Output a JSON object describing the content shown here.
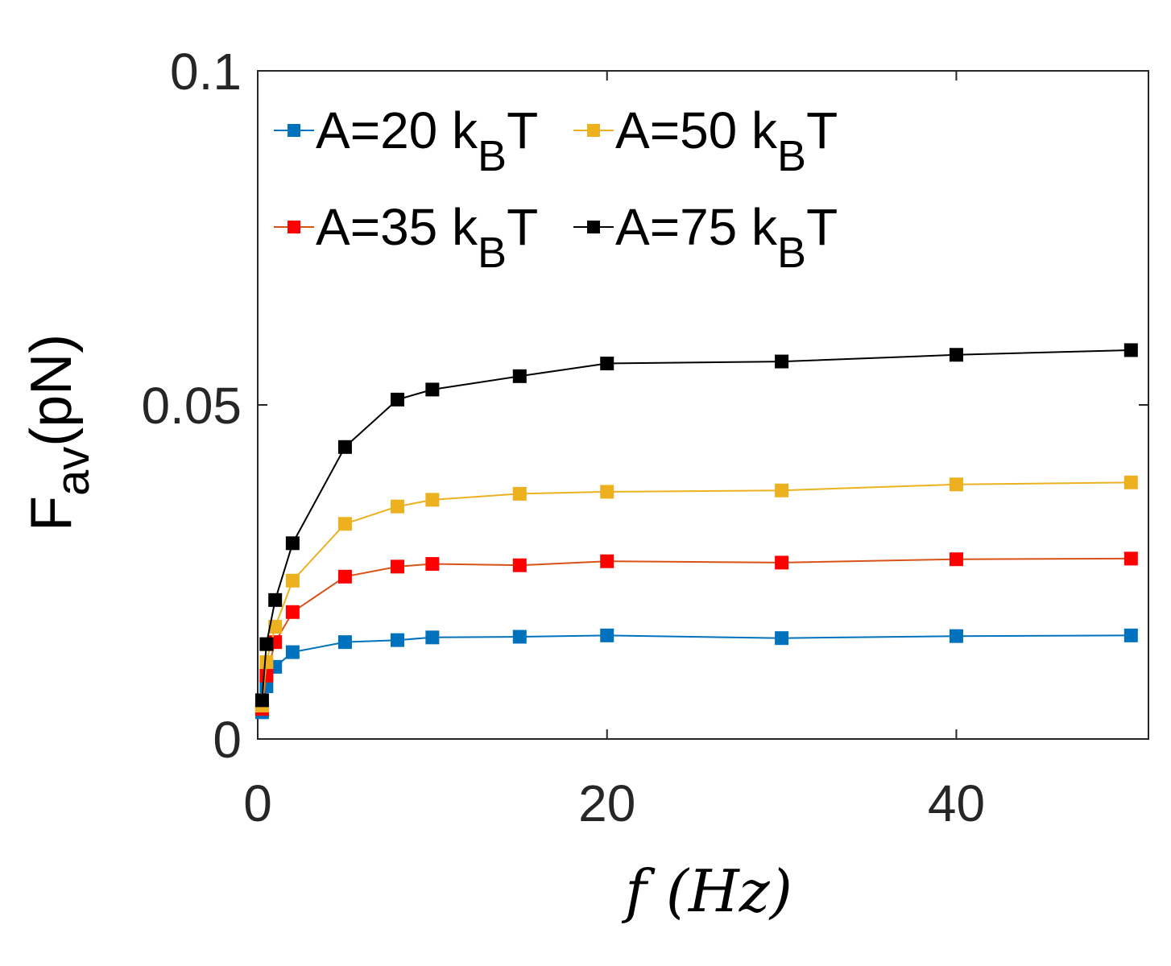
{
  "chart_data": {
    "type": "line",
    "title": "",
    "xlabel": {
      "var": "f",
      "unit": "(Hz)"
    },
    "ylabel": {
      "main": "F",
      "sub": "av",
      "unit": "(pN)"
    },
    "xlim": [
      0,
      51
    ],
    "ylim": [
      0,
      0.1
    ],
    "xticks": [
      0,
      20,
      40
    ],
    "yticks": [
      0,
      0.05,
      0.1
    ],
    "ytick_labels": [
      "0",
      "0.05",
      "0.1"
    ],
    "xtick_labels": [
      "0",
      "20",
      "40"
    ],
    "x": [
      0.25,
      0.5,
      1,
      2,
      5,
      8,
      10,
      15,
      20,
      30,
      40,
      50
    ],
    "series": [
      {
        "name": "A=20 kBT",
        "label_main": "A=20 k",
        "label_sub": "B",
        "label_end": "T",
        "color": "#0072BD",
        "marker_color": "#0072BD",
        "values": [
          0.004,
          0.0079,
          0.0108,
          0.013,
          0.0145,
          0.0148,
          0.0152,
          0.0153,
          0.0155,
          0.0151,
          0.0154,
          0.0155
        ]
      },
      {
        "name": "A=35 kBT",
        "label_main": "A=35 k",
        "label_sub": "B",
        "label_end": "T",
        "color": "#D95319",
        "marker_color": "#FF0000",
        "values": [
          0.0045,
          0.0095,
          0.0145,
          0.019,
          0.0243,
          0.0258,
          0.0262,
          0.026,
          0.0266,
          0.0264,
          0.0269,
          0.027
        ]
      },
      {
        "name": "A=50 kBT",
        "label_main": "A=50 k",
        "label_sub": "B",
        "label_end": "T",
        "color": "#EDB120",
        "marker_color": "#EDB120",
        "values": [
          0.005,
          0.0115,
          0.0168,
          0.0237,
          0.0322,
          0.0348,
          0.0358,
          0.0367,
          0.037,
          0.0372,
          0.0381,
          0.0384
        ]
      },
      {
        "name": "A=75 kBT",
        "label_main": "A=75 k",
        "label_sub": "B",
        "label_end": "T",
        "color": "#000000",
        "marker_color": "#000000",
        "values": [
          0.0058,
          0.0142,
          0.0208,
          0.0293,
          0.0437,
          0.0508,
          0.0523,
          0.0543,
          0.0562,
          0.0565,
          0.0575,
          0.0582
        ]
      }
    ],
    "legend": {
      "placement": "top-left",
      "columns": 2,
      "order": [
        "A=20 kBT",
        "A=50 kBT",
        "A=35 kBT",
        "A=75 kBT"
      ]
    },
    "grid": false
  }
}
